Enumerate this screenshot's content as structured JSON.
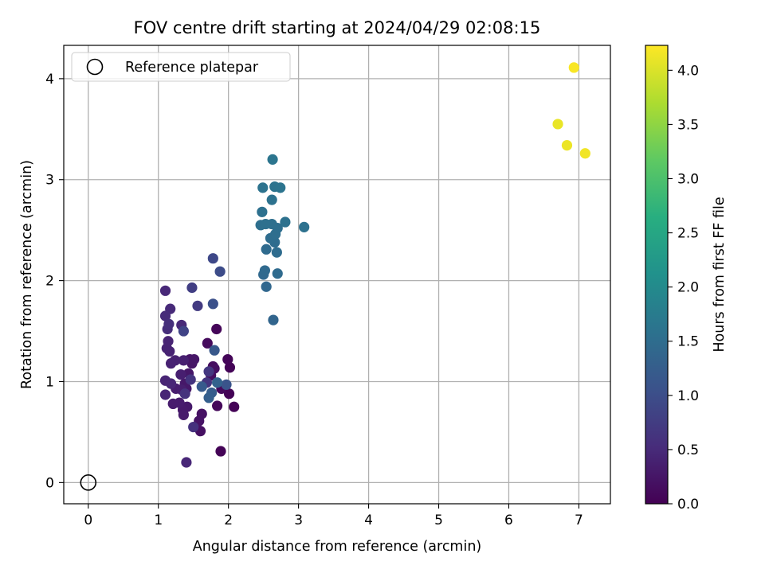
{
  "chart_data": {
    "type": "scatter",
    "title": "FOV centre drift starting at 2024/04/29 02:08:15",
    "xlabel": "Angular distance from reference (arcmin)",
    "ylabel": "Rotation from reference (arcmin)",
    "xlim": [
      -0.35,
      7.45
    ],
    "ylim": [
      -0.21,
      4.33
    ],
    "xticks": [
      0,
      1,
      2,
      3,
      4,
      5,
      6,
      7
    ],
    "yticks": [
      0,
      1,
      2,
      3,
      4
    ],
    "grid": true,
    "legend": {
      "position": "top-left",
      "entries": [
        "Reference platepar"
      ]
    },
    "colorbar": {
      "label": "Hours from first FF file",
      "colormap": "viridis",
      "range": [
        0.0,
        4.23
      ],
      "ticks": [
        "0.0",
        "0.5",
        "1.0",
        "1.5",
        "2.0",
        "2.5",
        "3.0",
        "3.5",
        "4.0"
      ]
    },
    "reference_point": {
      "name": "Reference platepar",
      "x": 0,
      "y": 0
    },
    "series": [
      {
        "points": [
          {
            "x": 1.89,
            "y": 0.31,
            "h": 0.02
          },
          {
            "x": 2.08,
            "y": 0.75,
            "h": 0.02
          },
          {
            "x": 2.01,
            "y": 0.88,
            "h": 0.03
          },
          {
            "x": 2.02,
            "y": 1.14,
            "h": 0.04
          },
          {
            "x": 1.99,
            "y": 1.22,
            "h": 0.05
          },
          {
            "x": 1.83,
            "y": 1.52,
            "h": 0.06
          },
          {
            "x": 1.84,
            "y": 0.76,
            "h": 0.08
          },
          {
            "x": 1.9,
            "y": 0.93,
            "h": 0.1
          },
          {
            "x": 1.7,
            "y": 1.38,
            "h": 0.12
          },
          {
            "x": 1.78,
            "y": 1.15,
            "h": 0.14
          },
          {
            "x": 1.75,
            "y": 1.06,
            "h": 0.16
          },
          {
            "x": 1.8,
            "y": 1.13,
            "h": 0.17
          },
          {
            "x": 1.6,
            "y": 0.51,
            "h": 0.18
          },
          {
            "x": 1.62,
            "y": 0.68,
            "h": 0.2
          },
          {
            "x": 1.58,
            "y": 0.61,
            "h": 0.22
          },
          {
            "x": 1.45,
            "y": 1.22,
            "h": 0.23
          },
          {
            "x": 1.48,
            "y": 1.18,
            "h": 0.24
          },
          {
            "x": 1.51,
            "y": 1.22,
            "h": 0.25
          },
          {
            "x": 1.43,
            "y": 1.08,
            "h": 0.26
          },
          {
            "x": 1.4,
            "y": 0.93,
            "h": 0.27
          },
          {
            "x": 1.38,
            "y": 0.98,
            "h": 0.28
          },
          {
            "x": 1.41,
            "y": 0.75,
            "h": 0.29
          },
          {
            "x": 1.35,
            "y": 0.72,
            "h": 0.3
          },
          {
            "x": 1.36,
            "y": 0.67,
            "h": 0.31
          },
          {
            "x": 1.3,
            "y": 0.79,
            "h": 0.32
          },
          {
            "x": 1.21,
            "y": 0.78,
            "h": 0.33
          },
          {
            "x": 1.25,
            "y": 0.93,
            "h": 0.34
          },
          {
            "x": 1.33,
            "y": 0.92,
            "h": 0.35
          },
          {
            "x": 1.32,
            "y": 1.07,
            "h": 0.36
          },
          {
            "x": 1.36,
            "y": 1.21,
            "h": 0.37
          },
          {
            "x": 1.24,
            "y": 1.21,
            "h": 0.38
          },
          {
            "x": 1.18,
            "y": 1.18,
            "h": 0.39
          },
          {
            "x": 1.16,
            "y": 1.3,
            "h": 0.4
          },
          {
            "x": 1.12,
            "y": 1.33,
            "h": 0.41
          },
          {
            "x": 1.14,
            "y": 1.4,
            "h": 0.42
          },
          {
            "x": 1.1,
            "y": 1.01,
            "h": 0.43
          },
          {
            "x": 1.1,
            "y": 0.87,
            "h": 0.44
          },
          {
            "x": 1.18,
            "y": 0.98,
            "h": 0.45
          },
          {
            "x": 1.4,
            "y": 0.2,
            "h": 0.46
          },
          {
            "x": 1.1,
            "y": 1.9,
            "h": 0.47
          },
          {
            "x": 1.33,
            "y": 1.56,
            "h": 0.48
          },
          {
            "x": 1.17,
            "y": 1.72,
            "h": 0.5
          },
          {
            "x": 1.1,
            "y": 1.65,
            "h": 0.52
          },
          {
            "x": 1.13,
            "y": 1.52,
            "h": 0.55
          },
          {
            "x": 1.15,
            "y": 1.57,
            "h": 0.58
          },
          {
            "x": 1.5,
            "y": 0.55,
            "h": 0.6
          },
          {
            "x": 1.38,
            "y": 0.88,
            "h": 0.62
          },
          {
            "x": 1.46,
            "y": 1.02,
            "h": 0.64
          },
          {
            "x": 1.69,
            "y": 0.99,
            "h": 0.66
          },
          {
            "x": 1.72,
            "y": 1.1,
            "h": 0.68
          },
          {
            "x": 1.56,
            "y": 1.75,
            "h": 0.72
          },
          {
            "x": 1.48,
            "y": 1.93,
            "h": 0.78
          },
          {
            "x": 1.36,
            "y": 1.5,
            "h": 0.86
          },
          {
            "x": 1.78,
            "y": 2.22,
            "h": 0.92
          },
          {
            "x": 1.88,
            "y": 2.09,
            "h": 0.98
          },
          {
            "x": 1.78,
            "y": 1.77,
            "h": 1.04
          },
          {
            "x": 1.97,
            "y": 0.97,
            "h": 1.1
          },
          {
            "x": 1.8,
            "y": 1.31,
            "h": 1.16
          },
          {
            "x": 1.62,
            "y": 0.95,
            "h": 1.2
          },
          {
            "x": 1.76,
            "y": 0.89,
            "h": 1.24
          },
          {
            "x": 1.72,
            "y": 0.84,
            "h": 1.28
          },
          {
            "x": 1.84,
            "y": 0.99,
            "h": 1.32
          },
          {
            "x": 2.64,
            "y": 1.61,
            "h": 1.36
          },
          {
            "x": 2.54,
            "y": 1.94,
            "h": 1.4
          },
          {
            "x": 2.5,
            "y": 2.06,
            "h": 1.42
          },
          {
            "x": 2.52,
            "y": 2.1,
            "h": 1.44
          },
          {
            "x": 2.7,
            "y": 2.07,
            "h": 1.46
          },
          {
            "x": 2.54,
            "y": 2.31,
            "h": 1.47
          },
          {
            "x": 2.69,
            "y": 2.28,
            "h": 1.48
          },
          {
            "x": 2.66,
            "y": 2.38,
            "h": 1.49
          },
          {
            "x": 2.6,
            "y": 2.42,
            "h": 1.5
          },
          {
            "x": 2.67,
            "y": 2.46,
            "h": 1.51
          },
          {
            "x": 2.7,
            "y": 2.52,
            "h": 1.52
          },
          {
            "x": 2.62,
            "y": 2.56,
            "h": 1.53
          },
          {
            "x": 2.46,
            "y": 2.55,
            "h": 1.54
          },
          {
            "x": 2.53,
            "y": 2.56,
            "h": 1.55
          },
          {
            "x": 2.48,
            "y": 2.68,
            "h": 1.56
          },
          {
            "x": 2.81,
            "y": 2.58,
            "h": 1.57
          },
          {
            "x": 3.08,
            "y": 2.53,
            "h": 1.58
          },
          {
            "x": 2.62,
            "y": 2.8,
            "h": 1.59
          },
          {
            "x": 2.49,
            "y": 2.92,
            "h": 1.6
          },
          {
            "x": 2.66,
            "y": 2.93,
            "h": 1.61
          },
          {
            "x": 2.74,
            "y": 2.92,
            "h": 1.62
          },
          {
            "x": 2.63,
            "y": 3.2,
            "h": 1.64
          },
          {
            "x": 6.7,
            "y": 3.55,
            "h": 4.1
          },
          {
            "x": 6.83,
            "y": 3.34,
            "h": 4.12
          },
          {
            "x": 7.09,
            "y": 3.26,
            "h": 4.15
          },
          {
            "x": 6.93,
            "y": 4.11,
            "h": 4.2
          }
        ]
      }
    ]
  }
}
